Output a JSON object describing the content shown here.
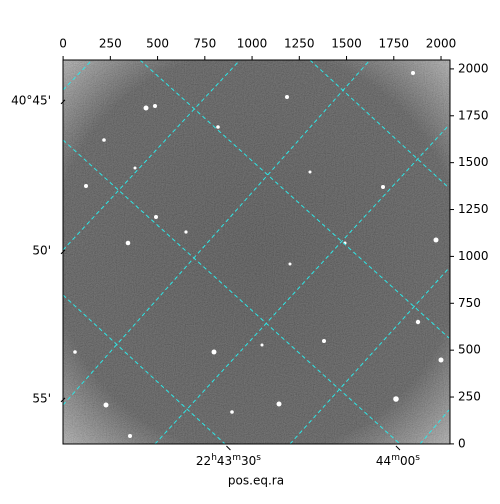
{
  "chart_data": {
    "type": "image",
    "xlabel": "pos.eq.ra",
    "xlim": [
      -0.5,
      2047.5
    ],
    "ylim": [
      -0.5,
      2047.5
    ],
    "xticks": [
      0,
      250,
      500,
      750,
      1000,
      1250,
      1500,
      1750,
      2000
    ],
    "yticks": [
      0,
      250,
      500,
      750,
      1000,
      1250,
      1500,
      1750,
      2000
    ],
    "ra_ticks": [
      {
        "value": 875,
        "label": [
          "22",
          "h",
          "43",
          "m",
          "30",
          "s"
        ]
      },
      {
        "value": 1772,
        "label": [
          "44",
          "m",
          "00",
          "s"
        ]
      }
    ],
    "dec_ticks": [
      {
        "value": 1824,
        "label": "40°45'"
      },
      {
        "value": 1024,
        "label": "50'"
      },
      {
        "value": 235,
        "label": "55'"
      }
    ]
  }
}
